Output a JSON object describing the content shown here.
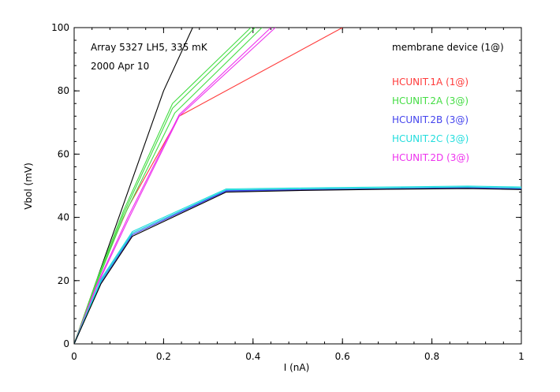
{
  "chart_data": {
    "type": "line",
    "title": "",
    "xlabel": "I (nA)",
    "ylabel": "Vbol (mV)",
    "xlim": [
      0,
      1
    ],
    "ylim": [
      0,
      100
    ],
    "xticks": [
      0,
      0.2,
      0.4,
      0.6,
      0.8,
      1
    ],
    "xtick_labels": [
      "0",
      "0.2",
      "0.4",
      "0.6",
      "0.8",
      "1"
    ],
    "yticks": [
      0,
      20,
      40,
      60,
      80,
      100
    ],
    "ytick_labels": [
      "0",
      "20",
      "40",
      "60",
      "80",
      "100"
    ],
    "grid": false,
    "legend_position": "top-right",
    "annotations": {
      "line1": "Array 5327 LH5, 335 mK",
      "line2": "2000 Apr 10",
      "device": "membrane device (1@)"
    },
    "legend": [
      {
        "label": "HCUNIT.1A (1@)",
        "color": "#ff3b3b"
      },
      {
        "label": "HCUNIT.2A (3@)",
        "color": "#44dd44"
      },
      {
        "label": "HCUNIT.2B (3@)",
        "color": "#4444ee"
      },
      {
        "label": "HCUNIT.2C (3@)",
        "color": "#22dddd"
      },
      {
        "label": "HCUNIT.2D (3@)",
        "color": "#ee33ee"
      }
    ],
    "series": [
      {
        "color": "#000000",
        "x": [
          0,
          0.1,
          0.2,
          0.265
        ],
        "y": [
          0,
          40,
          80,
          100
        ]
      },
      {
        "color": "#ff3b3b",
        "x": [
          0,
          0.05,
          0.12,
          0.235,
          0.6
        ],
        "y": [
          0,
          20,
          43,
          72,
          100
        ]
      },
      {
        "color": "#44dd44",
        "x": [
          0,
          0.05,
          0.11,
          0.22,
          0.395
        ],
        "y": [
          0,
          20,
          42,
          76,
          100
        ]
      },
      {
        "color": "#44dd44",
        "x": [
          0,
          0.05,
          0.11,
          0.22,
          0.405
        ],
        "y": [
          0,
          19.5,
          41,
          74.5,
          100
        ]
      },
      {
        "color": "#44dd44",
        "x": [
          0,
          0.05,
          0.11,
          0.225,
          0.42
        ],
        "y": [
          0,
          19,
          40,
          73,
          100
        ]
      },
      {
        "color": "#ee33ee",
        "x": [
          0,
          0.05,
          0.12,
          0.235,
          0.45
        ],
        "y": [
          0,
          18,
          39,
          72,
          100
        ]
      },
      {
        "color": "#ee33ee",
        "x": [
          0,
          0.05,
          0.12,
          0.235,
          0.44
        ],
        "y": [
          0,
          18.5,
          40,
          72.5,
          100
        ]
      },
      {
        "color": "#4444ee",
        "x": [
          0,
          0.06,
          0.13,
          0.34,
          0.5,
          0.7,
          0.88,
          1.0
        ],
        "y": [
          0,
          20,
          35,
          48.5,
          48.8,
          49.2,
          49.5,
          49.2
        ]
      },
      {
        "color": "#4444ee",
        "x": [
          0,
          0.06,
          0.13,
          0.34,
          0.5,
          0.7,
          0.88,
          1.0
        ],
        "y": [
          0,
          19.5,
          34.5,
          48.3,
          48.6,
          49.0,
          49.3,
          49.0
        ]
      },
      {
        "color": "#22dddd",
        "x": [
          0,
          0.06,
          0.13,
          0.34,
          0.5,
          0.7,
          0.88,
          1.0
        ],
        "y": [
          0,
          20.5,
          35.5,
          49,
          49.3,
          49.6,
          49.9,
          49.6
        ]
      },
      {
        "color": "#22dddd",
        "x": [
          0,
          0.06,
          0.13,
          0.34,
          0.5,
          0.7,
          0.88,
          1.0
        ],
        "y": [
          0,
          19.8,
          35,
          48.7,
          49.0,
          49.3,
          49.6,
          49.3
        ]
      },
      {
        "color": "#000000",
        "x": [
          0,
          0.06,
          0.13,
          0.34,
          0.5,
          0.7,
          0.88,
          1.0
        ],
        "y": [
          0,
          19,
          34,
          48,
          48.5,
          48.9,
          49.1,
          48.8
        ]
      }
    ]
  }
}
